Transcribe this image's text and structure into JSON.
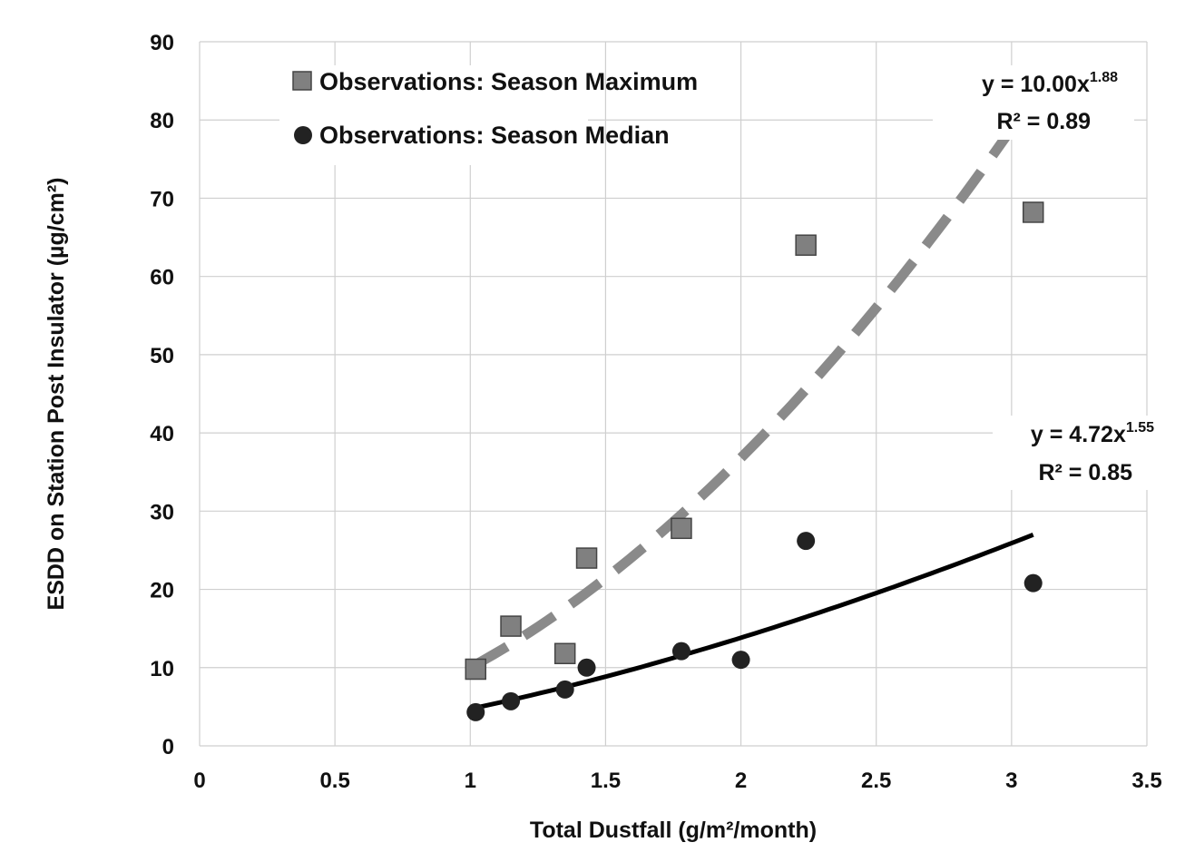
{
  "chart_data": {
    "type": "scatter",
    "xlabel": "Total Dustfall (g/m²/month)",
    "ylabel": "ESDD on Station Post Insulator (µg/cm²)",
    "xlim": [
      0,
      3.5
    ],
    "ylim": [
      0,
      90
    ],
    "x_ticks": [
      0,
      0.5,
      1,
      1.5,
      2,
      2.5,
      3,
      3.5
    ],
    "x_tick_labels": [
      "0",
      "0.5",
      "1",
      "1.5",
      "2",
      "2.5",
      "3",
      "3.5"
    ],
    "y_ticks": [
      0,
      10,
      20,
      30,
      40,
      50,
      60,
      70,
      80,
      90
    ],
    "y_tick_labels": [
      "0",
      "10",
      "20",
      "30",
      "40",
      "50",
      "60",
      "70",
      "80",
      "90"
    ],
    "grid": true,
    "legend_position": "top-left",
    "series": [
      {
        "name": "Observations: Season Maximum",
        "marker": "square",
        "color": "#808080",
        "x": [
          1.02,
          1.15,
          1.35,
          1.43,
          1.78,
          2.24,
          3.08
        ],
        "y": [
          9.8,
          15.3,
          11.8,
          24.0,
          27.8,
          64.0,
          68.2
        ]
      },
      {
        "name": "Observations: Season Median",
        "marker": "circle",
        "color": "#222222",
        "x": [
          1.02,
          1.15,
          1.35,
          1.43,
          1.78,
          2.0,
          2.24,
          3.08
        ],
        "y": [
          4.3,
          5.7,
          7.2,
          10.0,
          12.1,
          11.0,
          26.2,
          20.8
        ]
      }
    ],
    "trendlines": [
      {
        "series": "Observations: Season Maximum",
        "coef": 10.0,
        "exp": 1.88,
        "x_range": [
          1.02,
          3.02
        ],
        "style": "dashed",
        "color": "#8a8a8a",
        "equation_prefix": "y = 10.00x",
        "equation_exp": "1.88",
        "r2_label": "R² = 0.89"
      },
      {
        "series": "Observations: Season Median",
        "coef": 4.72,
        "exp": 1.55,
        "x_range": [
          1.02,
          3.08
        ],
        "style": "solid",
        "color": "#000000",
        "equation_prefix": "y = 4.72x",
        "equation_exp": "1.55",
        "r2_label": "R² = 0.85"
      }
    ]
  }
}
